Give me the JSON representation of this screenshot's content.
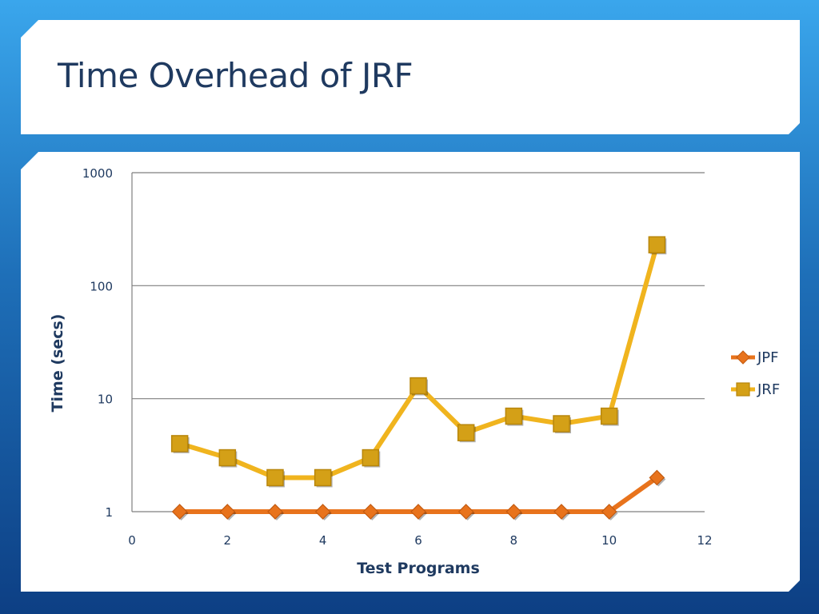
{
  "slide": {
    "title": "Time Overhead of JRF"
  },
  "colors": {
    "background_top": "#3aa6ec",
    "background_bottom": "#0d3f84",
    "text": "#1f3a60",
    "jpf": "#e8731c",
    "jrf": "#f0b41e",
    "jrf_marker": "#d4a017",
    "gridline": "#7f7f7f"
  },
  "chart_data": {
    "type": "line",
    "title": "",
    "xlabel": "Test Programs",
    "ylabel": "Time (secs)",
    "xlim": [
      0,
      12
    ],
    "ylim": [
      1,
      1000
    ],
    "y_scale": "log",
    "x_ticks": [
      "0",
      "2",
      "4",
      "6",
      "8",
      "10",
      "12"
    ],
    "y_ticks": [
      "1",
      "10",
      "100",
      "1000"
    ],
    "grid": "horizontal",
    "legend_position": "right",
    "series": [
      {
        "name": "JPF",
        "marker": "diamond",
        "color": "#e8731c",
        "x": [
          1,
          2,
          3,
          4,
          5,
          6,
          7,
          8,
          9,
          10,
          11
        ],
        "values": [
          1,
          1,
          1,
          1,
          1,
          1,
          1,
          1,
          1,
          1,
          2
        ]
      },
      {
        "name": "JRF",
        "marker": "square",
        "color": "#f0b41e",
        "x": [
          1,
          2,
          3,
          4,
          5,
          6,
          7,
          8,
          9,
          10,
          11
        ],
        "values": [
          4,
          3,
          2,
          2,
          3,
          13,
          5,
          7,
          6,
          7,
          230
        ]
      }
    ]
  }
}
